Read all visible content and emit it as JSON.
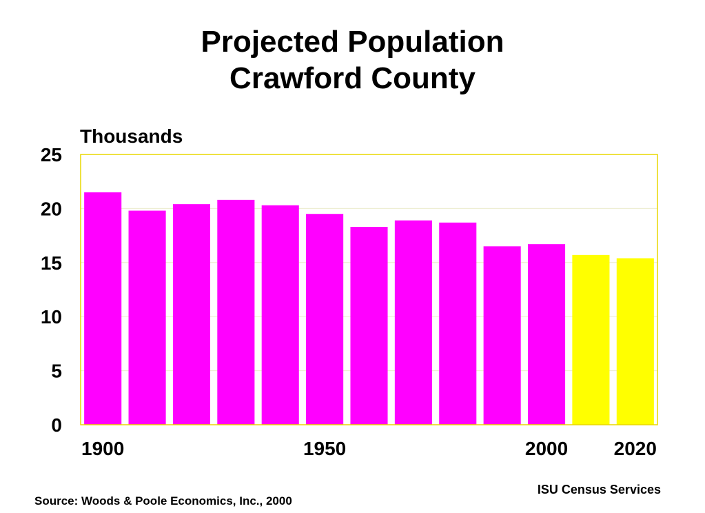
{
  "chart_data": {
    "type": "bar",
    "title_line1": "Projected Population",
    "title_line2": "Crawford County",
    "ylabel": "Thousands",
    "ylim": [
      0,
      25
    ],
    "yticks": [
      "0",
      "5",
      "10",
      "15",
      "20",
      "25"
    ],
    "xtick_labels": [
      {
        "label": "1900",
        "index": 0
      },
      {
        "label": "1950",
        "index": 5
      },
      {
        "label": "2000",
        "index": 10
      },
      {
        "label": "2020",
        "index": 12
      }
    ],
    "values": [
      21.5,
      19.8,
      20.4,
      20.8,
      20.3,
      19.5,
      18.3,
      18.9,
      18.7,
      16.5,
      16.7,
      15.7,
      15.4
    ],
    "projected_from_index": 11,
    "grid": true,
    "colors": {
      "historical": "#ff00ff",
      "projected": "#ffff00",
      "plot_border": "#e8d800",
      "grid": "#ececcc"
    }
  },
  "footer": {
    "credit": "ISU Census Services",
    "source": "Source:  Woods & Poole Economics, Inc., 2000"
  }
}
